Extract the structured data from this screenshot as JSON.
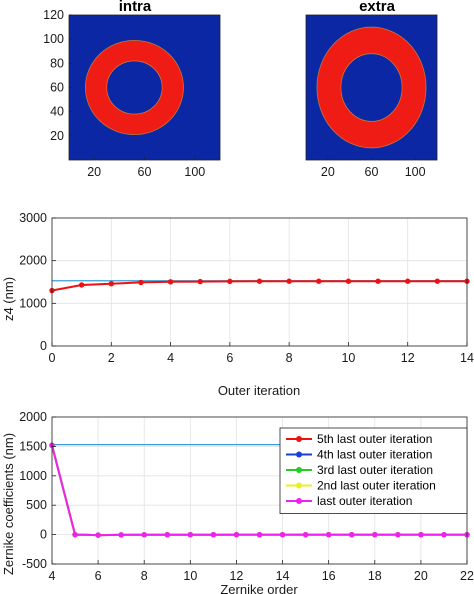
{
  "colors": {
    "map_background": "#0b27a3",
    "ring": "#ee1c14",
    "reference_line": "#3b9dd6",
    "series": [
      "#ee1111",
      "#1a3fd6",
      "#22cc22",
      "#eeee22",
      "#ee22ee"
    ]
  },
  "chart_data": [
    {
      "type": "heatmap",
      "title": "intra",
      "xticks": [
        "20",
        "60",
        "100"
      ],
      "yticks": [
        "120",
        "100",
        "80",
        "60",
        "40",
        "20"
      ],
      "xlim": [
        0,
        120
      ],
      "ylim": [
        0,
        120
      ],
      "ring": {
        "center": [
          52,
          60
        ],
        "inner_radius": 22,
        "outer_radius": 39
      }
    },
    {
      "type": "heatmap",
      "title": "extra",
      "xticks": [
        "20",
        "60",
        "100"
      ],
      "xlim": [
        0,
        120
      ],
      "ylim": [
        0,
        120
      ],
      "ring": {
        "center": [
          60,
          60
        ],
        "inner_radius": 28,
        "outer_radius": 50
      }
    },
    {
      "type": "line",
      "xlabel": "Outer iteration",
      "ylabel": "z4 (nm)",
      "xlim": [
        0,
        14
      ],
      "ylim": [
        0,
        3000
      ],
      "xticks": [
        "0",
        "2",
        "4",
        "6",
        "8",
        "10",
        "12",
        "14"
      ],
      "yticks": [
        "0",
        "1000",
        "2000",
        "3000"
      ],
      "grid": true,
      "reference_line": 1530,
      "x": [
        0,
        1,
        2,
        3,
        4,
        5,
        6,
        7,
        8,
        9,
        10,
        11,
        12,
        13,
        14
      ],
      "values": [
        1300,
        1430,
        1460,
        1490,
        1505,
        1510,
        1515,
        1518,
        1518,
        1518,
        1518,
        1518,
        1518,
        1518,
        1518
      ]
    },
    {
      "type": "line",
      "xlabel": "Zernike order",
      "ylabel": "Zernike coefficients (nm)",
      "xlim": [
        4,
        22
      ],
      "ylim": [
        -500,
        2000
      ],
      "xticks": [
        "4",
        "6",
        "8",
        "10",
        "12",
        "14",
        "16",
        "18",
        "20",
        "22"
      ],
      "yticks": [
        "-500",
        "0",
        "500",
        "1000",
        "1500",
        "2000"
      ],
      "grid": true,
      "reference_line": 1530,
      "legend_position": "top-right",
      "x": [
        4,
        5,
        6,
        7,
        8,
        9,
        10,
        11,
        12,
        13,
        14,
        15,
        16,
        17,
        18,
        19,
        20,
        21,
        22
      ],
      "series": [
        {
          "name": "5th last outer iteration",
          "values": [
            1518,
            0,
            -8,
            -5,
            -3,
            -2,
            -2,
            -2,
            -1,
            -1,
            -1,
            -1,
            -1,
            -1,
            -1,
            -1,
            -1,
            -1,
            -1
          ]
        },
        {
          "name": "4th last outer iteration",
          "values": [
            1518,
            0,
            -8,
            -5,
            -3,
            -2,
            -2,
            -2,
            -1,
            -1,
            -1,
            -1,
            -1,
            -1,
            -1,
            -1,
            -1,
            -1,
            -1
          ]
        },
        {
          "name": "3rd last outer iteration",
          "values": [
            1518,
            0,
            -8,
            -5,
            -3,
            -2,
            -2,
            -2,
            -1,
            -1,
            -1,
            -1,
            -1,
            -1,
            -1,
            -1,
            -1,
            -1,
            -1
          ]
        },
        {
          "name": "2nd last outer iteration",
          "values": [
            1518,
            0,
            -8,
            -5,
            -3,
            -2,
            -2,
            -2,
            -1,
            -1,
            -1,
            -1,
            -1,
            -1,
            -1,
            -1,
            -1,
            -1,
            -1
          ]
        },
        {
          "name": "last outer iteration",
          "values": [
            1518,
            0,
            -8,
            -5,
            -3,
            -2,
            -2,
            -2,
            -1,
            -1,
            -1,
            -1,
            -1,
            -1,
            -1,
            -1,
            -1,
            -1,
            -1
          ]
        }
      ]
    }
  ]
}
